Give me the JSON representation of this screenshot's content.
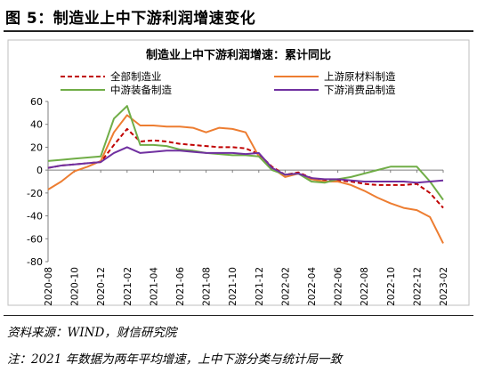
{
  "figure_title": "图 5：制造业上中下游利润增速变化",
  "source": "资料来源：WIND，财信研究院",
  "footnote": "注：2021 年数据为两年平均增速，上中下游分类与统计局一致",
  "chart_data": {
    "type": "line",
    "title": "制造业上中下游利润增速：累计同比",
    "ylim": [
      -80,
      60
    ],
    "yticks": [
      "60",
      "40",
      "20",
      "0",
      "-20",
      "-40",
      "-60",
      "-80"
    ],
    "xticks": [
      "2020-08",
      "2020-10",
      "2020-12",
      "2021-02",
      "2021-04",
      "2021-06",
      "2021-08",
      "2021-10",
      "2021-12",
      "2022-02",
      "2022-04",
      "2022-06",
      "2022-08",
      "2022-10",
      "2022-12",
      "2023-02"
    ],
    "legend_position": "top",
    "x": [
      "2020-08",
      "2020-09",
      "2020-10",
      "2020-11",
      "2020-12",
      "2021-01",
      "2021-02",
      "2021-03",
      "2021-04",
      "2021-05",
      "2021-06",
      "2021-07",
      "2021-08",
      "2021-09",
      "2021-10",
      "2021-11",
      "2021-12",
      "2022-01",
      "2022-02",
      "2022-03",
      "2022-04",
      "2022-05",
      "2022-06",
      "2022-07",
      "2022-08",
      "2022-09",
      "2022-10",
      "2022-11",
      "2022-12",
      "2023-01",
      "2023-02"
    ],
    "series": [
      {
        "name": "全部制造业",
        "color": "#c00000",
        "dash": true,
        "values": [
          2,
          4,
          5,
          6,
          7,
          22,
          36,
          25,
          26,
          25,
          23,
          22,
          21,
          20,
          20,
          19,
          14,
          3,
          -4,
          -2,
          -7,
          -9,
          -9,
          -10,
          -12,
          -13,
          -13,
          -13,
          -12,
          -20,
          -33
        ]
      },
      {
        "name": "上游原材料制造",
        "color": "#ed7d31",
        "dash": false,
        "values": [
          -17,
          -10,
          -1,
          3,
          8,
          33,
          48,
          39,
          39,
          38,
          38,
          37,
          33,
          37,
          36,
          33,
          12,
          2,
          -6,
          -3,
          -8,
          -10,
          -10,
          -13,
          -18,
          -24,
          -29,
          -33,
          -35,
          -41,
          -64
        ]
      },
      {
        "name": "中游装备制造",
        "color": "#70ad47",
        "dash": false,
        "values": [
          8,
          9,
          10,
          11,
          12,
          45,
          56,
          22,
          22,
          21,
          18,
          17,
          15,
          14,
          13,
          13,
          12,
          0,
          -4,
          -3,
          -10,
          -11,
          -8,
          -6,
          -3,
          0,
          3,
          3,
          3,
          -10,
          -26
        ]
      },
      {
        "name": "下游消费品制造",
        "color": "#7030a0",
        "dash": false,
        "values": [
          2,
          4,
          5,
          6,
          7,
          15,
          20,
          15,
          16,
          17,
          17,
          16,
          15,
          15,
          15,
          14,
          15,
          2,
          -4,
          -3,
          -7,
          -8,
          -8,
          -9,
          -10,
          -10,
          -10,
          -10,
          -11,
          -10,
          -9
        ]
      }
    ]
  }
}
